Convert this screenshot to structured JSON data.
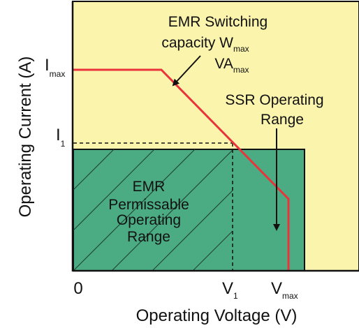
{
  "axes": {
    "x_label": "Operating Voltage (V)",
    "y_label": "Operating Current (A)"
  },
  "ticks": {
    "x_zero": "0",
    "x_v1_main": "V",
    "x_v1_sub": "1",
    "x_vmax_main": "V",
    "x_vmax_sub": "max",
    "y_imax_main": "I",
    "y_imax_sub": "max",
    "y_i1_main": "I",
    "y_i1_sub": "1"
  },
  "annotations": {
    "emr_capacity_line1": "EMR Switching",
    "emr_capacity_line2_main": "capacity W",
    "emr_capacity_line2_sub": "max",
    "emr_capacity_line3_main": "VA",
    "emr_capacity_line3_sub": "max",
    "ssr_line1": "SSR Operating",
    "ssr_line2": "Range",
    "emr_region_line1": "EMR",
    "emr_region_line2": "Permissable",
    "emr_region_line3": "Operating",
    "emr_region_line4": "Range"
  },
  "colors": {
    "ssr_region": "#fbf4ad",
    "emr_region": "#4bac84",
    "capacity_curve": "#e8343a",
    "axis": "#111111"
  }
}
